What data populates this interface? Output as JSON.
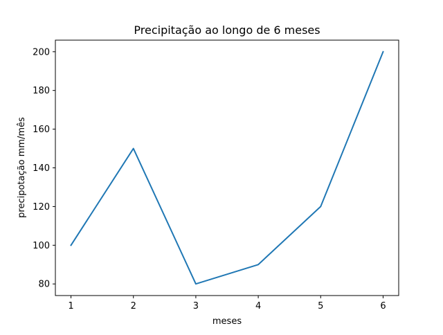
{
  "chart_data": {
    "type": "line",
    "title": "Precipitação ao longo de 6 meses",
    "xlabel": "meses",
    "ylabel": "precipotação mm/mês",
    "x": [
      1,
      2,
      3,
      4,
      5,
      6
    ],
    "series": [
      {
        "values": [
          100,
          150,
          80,
          90,
          120,
          200
        ],
        "color": "#1f77b4"
      }
    ],
    "xlim": [
      0.75,
      6.25
    ],
    "ylim": [
      74,
      206
    ],
    "xticks": [
      "1",
      "2",
      "3",
      "4",
      "5",
      "6"
    ],
    "yticks": [
      "80",
      "100",
      "120",
      "140",
      "160",
      "180",
      "200"
    ],
    "grid": false,
    "legend": "none"
  }
}
